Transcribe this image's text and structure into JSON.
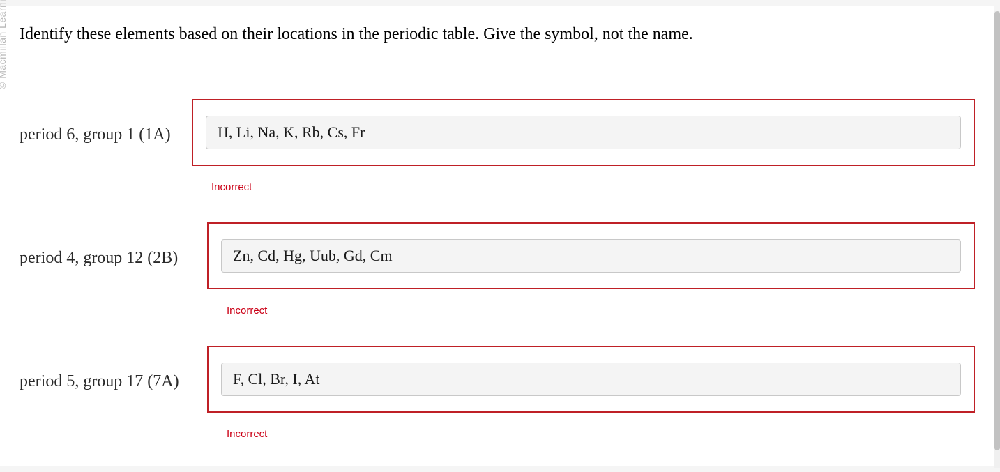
{
  "watermark": "© Macmillan Learning",
  "question": {
    "prompt": "Identify these elements based on their locations in the periodic table. Give the symbol, not the name."
  },
  "items": [
    {
      "label": "period 6, group 1 (1A)",
      "answer_value": "H, Li, Na, K, Rb, Cs, Fr",
      "feedback": "Incorrect",
      "feedback_color": "#cb0016",
      "border_color": "#bf2026"
    },
    {
      "label": "period 4, group 12 (2B)",
      "answer_value": "Zn, Cd, Hg, Uub, Gd, Cm",
      "feedback": "Incorrect",
      "feedback_color": "#cb0016",
      "border_color": "#bf2026"
    },
    {
      "label": "period 5, group 17 (7A)",
      "answer_value": "F, Cl, Br, I, At",
      "feedback": "Incorrect",
      "feedback_color": "#cb0016",
      "border_color": "#bf2026"
    }
  ],
  "styling": {
    "page_background": "#f5f5f5",
    "content_background": "#ffffff",
    "text_color": "#000000",
    "input_background": "#f4f4f4",
    "input_border": "#c8c8c8",
    "scrollbar_thumb": "#c2c2c2",
    "question_fontsize": 24,
    "label_fontsize": 24,
    "input_fontsize": 22,
    "feedback_fontsize": 15
  }
}
